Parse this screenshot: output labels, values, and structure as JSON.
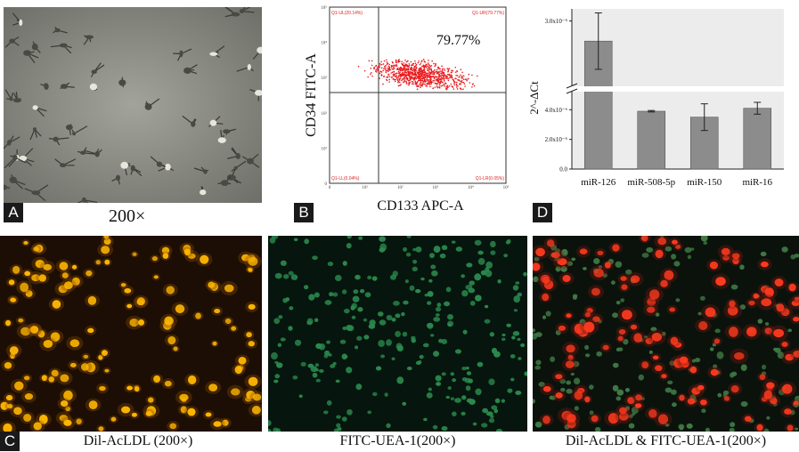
{
  "panelA": {
    "letter": "A",
    "caption": "200×"
  },
  "panelB": {
    "letter": "B",
    "percent": "79.77%",
    "ylabel": "CD34 FITC-A",
    "xlabel": "CD133 APC-A",
    "gates": {
      "ul": "Q1-UL(20.14%)",
      "ur": "Q1-UR(79.77%)",
      "ll": "Q1-LL(0.04%)",
      "lr": "Q1-LR(0.05%)"
    },
    "ticks": [
      "0",
      "10¹",
      "10²",
      "10³",
      "10⁴",
      "10⁵"
    ]
  },
  "panelD": {
    "letter": "D"
  },
  "panelC": {
    "letter": "C",
    "captions": [
      "Dil-AcLDL (200×)",
      "FITC-UEA-1(200×)",
      "Dil-AcLDL & FITC-UEA-1(200×)"
    ]
  },
  "chart_data": {
    "type": "bar",
    "categories": [
      "miR-126",
      "miR-508-5p",
      "miR-150",
      "miR-16"
    ],
    "values": [
      2.75e-05,
      3.9e-06,
      3.5e-06,
      4.1e-06
    ],
    "errors": [
      3.5e-06,
      5e-08,
      9e-07,
      4e-07
    ],
    "ylabel": "2^-ΔCt",
    "yticks_lower": [
      "0.0",
      "2.0x10⁻⁶",
      "4.0x10⁻⁶"
    ],
    "yticks_upper": [
      "3.0x10⁻⁵"
    ],
    "ylim_lower": [
      0,
      4.8e-06
    ],
    "ylim_upper": [
      2.2e-05,
      3.15e-05
    ],
    "axis_break": true,
    "bar_color": "#8c8c8c"
  }
}
